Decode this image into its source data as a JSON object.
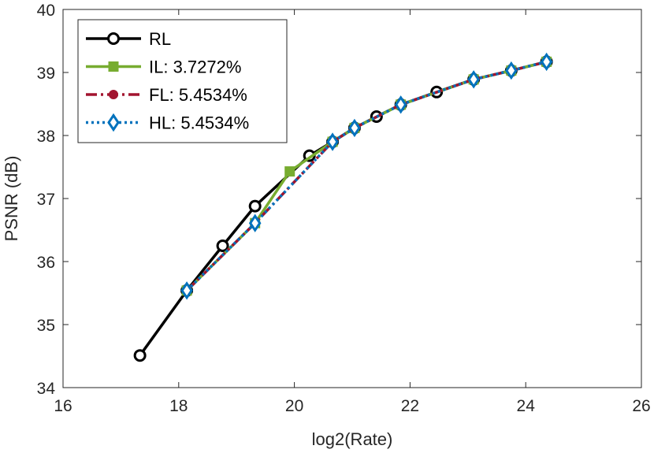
{
  "chart_data": {
    "type": "line",
    "title": "",
    "xlabel": "log2(Rate)",
    "ylabel": "PSNR (dB)",
    "xlim": [
      16,
      26
    ],
    "ylim": [
      34,
      40
    ],
    "xticks": [
      16,
      18,
      20,
      22,
      24,
      26
    ],
    "yticks": [
      34,
      35,
      36,
      37,
      38,
      39,
      40
    ],
    "grid": false,
    "legend_position": "top-left",
    "series": [
      {
        "name": "RL",
        "color": "#000000",
        "line_style": "solid",
        "marker": "circle",
        "x": [
          17.33,
          18.14,
          18.76,
          19.32,
          20.26,
          20.66,
          21.04,
          21.42,
          21.84,
          22.46,
          23.1,
          23.75,
          24.36
        ],
        "y": [
          34.51,
          35.54,
          36.25,
          36.88,
          37.68,
          37.9,
          38.12,
          38.3,
          38.49,
          38.69,
          38.89,
          39.03,
          39.17
        ]
      },
      {
        "name": "IL: 3.7272%",
        "color": "#77ac30",
        "line_style": "solid",
        "marker": "square",
        "x": [
          18.14,
          19.32,
          19.92,
          20.66,
          21.04,
          21.84,
          23.1,
          23.75,
          24.36
        ],
        "y": [
          35.54,
          36.61,
          37.43,
          37.9,
          38.12,
          38.49,
          38.89,
          39.03,
          39.17
        ]
      },
      {
        "name": "FL: 5.4534%",
        "color": "#a2142f",
        "line_style": "dashdot",
        "marker": "filled-circle",
        "x": [
          18.14,
          19.32,
          20.66,
          21.04,
          21.84,
          23.1,
          23.75,
          24.36
        ],
        "y": [
          35.54,
          36.61,
          37.9,
          38.12,
          38.49,
          38.89,
          39.03,
          39.17
        ]
      },
      {
        "name": "HL: 5.4534%",
        "color": "#0072bd",
        "line_style": "dotted",
        "marker": "diamond",
        "x": [
          18.14,
          19.32,
          20.66,
          21.04,
          21.84,
          23.1,
          23.75,
          24.36
        ],
        "y": [
          35.54,
          36.61,
          37.9,
          38.12,
          38.49,
          38.89,
          39.03,
          39.17
        ]
      }
    ]
  }
}
